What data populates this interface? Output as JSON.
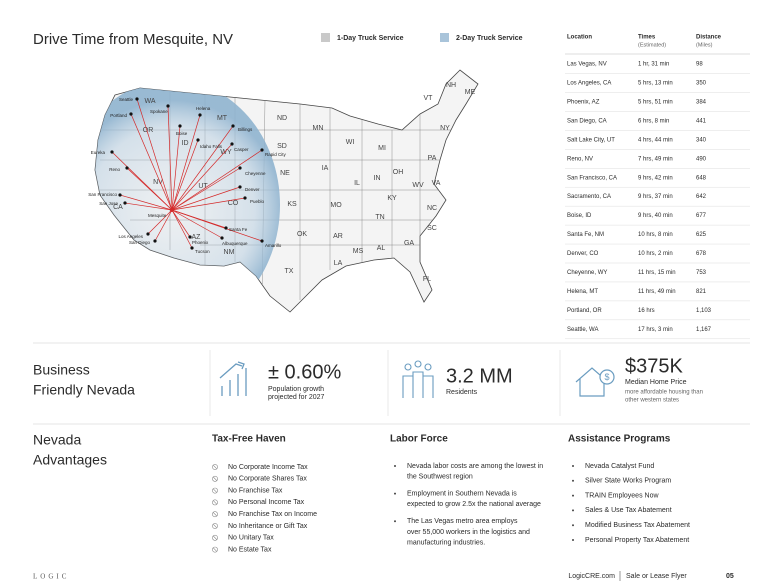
{
  "header": {
    "title": "Drive Time from Mesquite, NV",
    "legend": [
      "1-Day Truck Service",
      "2-Day Truck Service"
    ]
  },
  "map": {
    "states": [
      "WA",
      "OR",
      "ID",
      "MT",
      "WY",
      "NV",
      "UT",
      "CO",
      "CA",
      "AZ",
      "NM",
      "ND",
      "SD",
      "NE",
      "KS",
      "OK",
      "TX",
      "MN",
      "IA",
      "MO",
      "AR",
      "LA",
      "WI",
      "IL",
      "MS",
      "MI",
      "IN",
      "KY",
      "TN",
      "AL",
      "OH",
      "WV",
      "GA",
      "PA",
      "VA",
      "NC",
      "SC",
      "FL",
      "NY",
      "VT",
      "NH",
      "ME"
    ],
    "cities": [
      "Seattle",
      "Spokane",
      "Portland",
      "Boise",
      "Helena",
      "Billings",
      "Idaho Falls",
      "Casper",
      "Rapid City",
      "Cheyenne",
      "Eureka",
      "Reno",
      "Denver",
      "Pueblo",
      "San Francisco",
      "San Jose",
      "Los Angeles",
      "San Diego",
      "Phoenix",
      "Tucson",
      "Albuquerque",
      "Santa Fe",
      "Amarillo",
      "Mesquite"
    ]
  },
  "table": {
    "columns": [
      {
        "title": "Location"
      },
      {
        "title": "Times",
        "subtitle": "(Estimated)"
      },
      {
        "title": "Distance",
        "subtitle": "(Miles)"
      }
    ],
    "rows": [
      [
        "Las Vegas, NV",
        "1 hr, 31 min",
        "98"
      ],
      [
        "Los Angeles, CA",
        "5 hrs, 13 min",
        "350"
      ],
      [
        "Phoenix, AZ",
        "5 hrs, 51 min",
        "384"
      ],
      [
        "San Diego, CA",
        "6 hrs, 8 min",
        "441"
      ],
      [
        "Salt Lake City, UT",
        "4 hrs, 44 min",
        "340"
      ],
      [
        "Reno, NV",
        "7 hrs, 49 min",
        "490"
      ],
      [
        "San Francisco, CA",
        "9 hrs, 42 min",
        "648"
      ],
      [
        "Sacramento, CA",
        "9 hrs, 37 min",
        "642"
      ],
      [
        "Boise, ID",
        "9 hrs, 40 min",
        "677"
      ],
      [
        "Santa Fe, NM",
        "10 hrs, 8 min",
        "625"
      ],
      [
        "Denver, CO",
        "10 hrs, 2 min",
        "678"
      ],
      [
        "Cheyenne, WY",
        "11 hrs, 15 min",
        "753"
      ],
      [
        "Helena, MT",
        "11 hrs, 49 min",
        "821"
      ],
      [
        "Portland, OR",
        "16 hrs",
        "1,103"
      ],
      [
        "Seattle, WA",
        "17 hrs, 3 min",
        "1,167"
      ]
    ]
  },
  "stats": {
    "heading": [
      "Business",
      "Friendly Nevada"
    ],
    "items": [
      {
        "value": "± 0.60%",
        "label": [
          "Population growth",
          "projected for 2027"
        ]
      },
      {
        "value": "3.2 MM",
        "label": [
          "Residents"
        ]
      },
      {
        "value": "$375K",
        "label": [
          "Median Home Price",
          "more affordable housing than",
          "other western states"
        ]
      }
    ]
  },
  "advantages": {
    "heading": [
      "Nevada",
      "Advantages"
    ],
    "columns": [
      {
        "title": "Tax-Free Haven",
        "items": [
          [
            "No Corporate Income Tax"
          ],
          [
            "No Corporate Shares Tax"
          ],
          [
            "No Franchise Tax"
          ],
          [
            "No Personal Income Tax"
          ],
          [
            "No Franchise Tax on Income"
          ],
          [
            "No Inheritance or Gift Tax"
          ],
          [
            "No Unitary Tax"
          ],
          [
            "No Estate Tax"
          ]
        ]
      },
      {
        "title": "Labor Force",
        "items": [
          [
            "Nevada labor costs are among the lowest in",
            "the Southwest region"
          ],
          [
            "Employment in Southern Nevada is",
            "expected to grow 2.5x the national average"
          ],
          [
            "The Las Vegas metro area employs",
            "over 55,000 workers in the logistics and",
            "manufacturing industries."
          ]
        ]
      },
      {
        "title": "Assistance Programs",
        "items": [
          [
            "Nevada Catalyst Fund"
          ],
          [
            "Silver State Works Program"
          ],
          [
            "TRAIN Employees Now"
          ],
          [
            "Sales & Use Tax Abatement"
          ],
          [
            "Modified Business Tax Abatement"
          ],
          [
            "Personal Property Tax Abatement"
          ]
        ]
      }
    ]
  },
  "footer": {
    "brand": "LOGIC",
    "site": "LogicCRE.com",
    "doc": "Sale or Lease Flyer",
    "page": "05"
  }
}
